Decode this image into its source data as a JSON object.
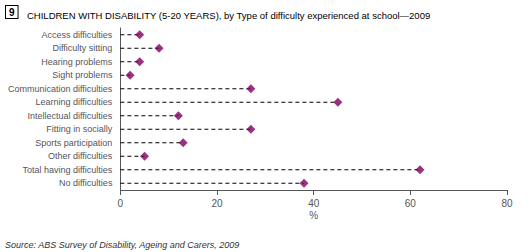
{
  "chart_data": {
    "type": "lollipop",
    "title": "CHILDREN WITH DISABILITY (5-20 YEARS), by Type of difficulty experienced at school—2009",
    "annotations": [
      "9",
      "Source: ABS Survey of Disability, Ageing and Carers, 2009"
    ],
    "xlabel": "%",
    "categories": [
      "Access difficulties",
      "Difficulty sitting",
      "Hearing problems",
      "Sight problems",
      "Communication difficulties",
      "Learning difficulties",
      "Intellectual difficulties",
      "Fitting in socially",
      "Sports participation",
      "Other difficulties",
      "Total having difficulties",
      "No difficulties"
    ],
    "values": [
      4,
      8,
      4,
      2,
      27,
      45,
      12,
      27,
      13,
      5,
      62,
      38
    ],
    "orientation": "horizontal",
    "xlim": [
      0,
      80
    ],
    "xticks": [
      0,
      20,
      40,
      60,
      80
    ],
    "color": "#800060",
    "marker": "diamond",
    "line_style": "dashed",
    "grid": false
  }
}
